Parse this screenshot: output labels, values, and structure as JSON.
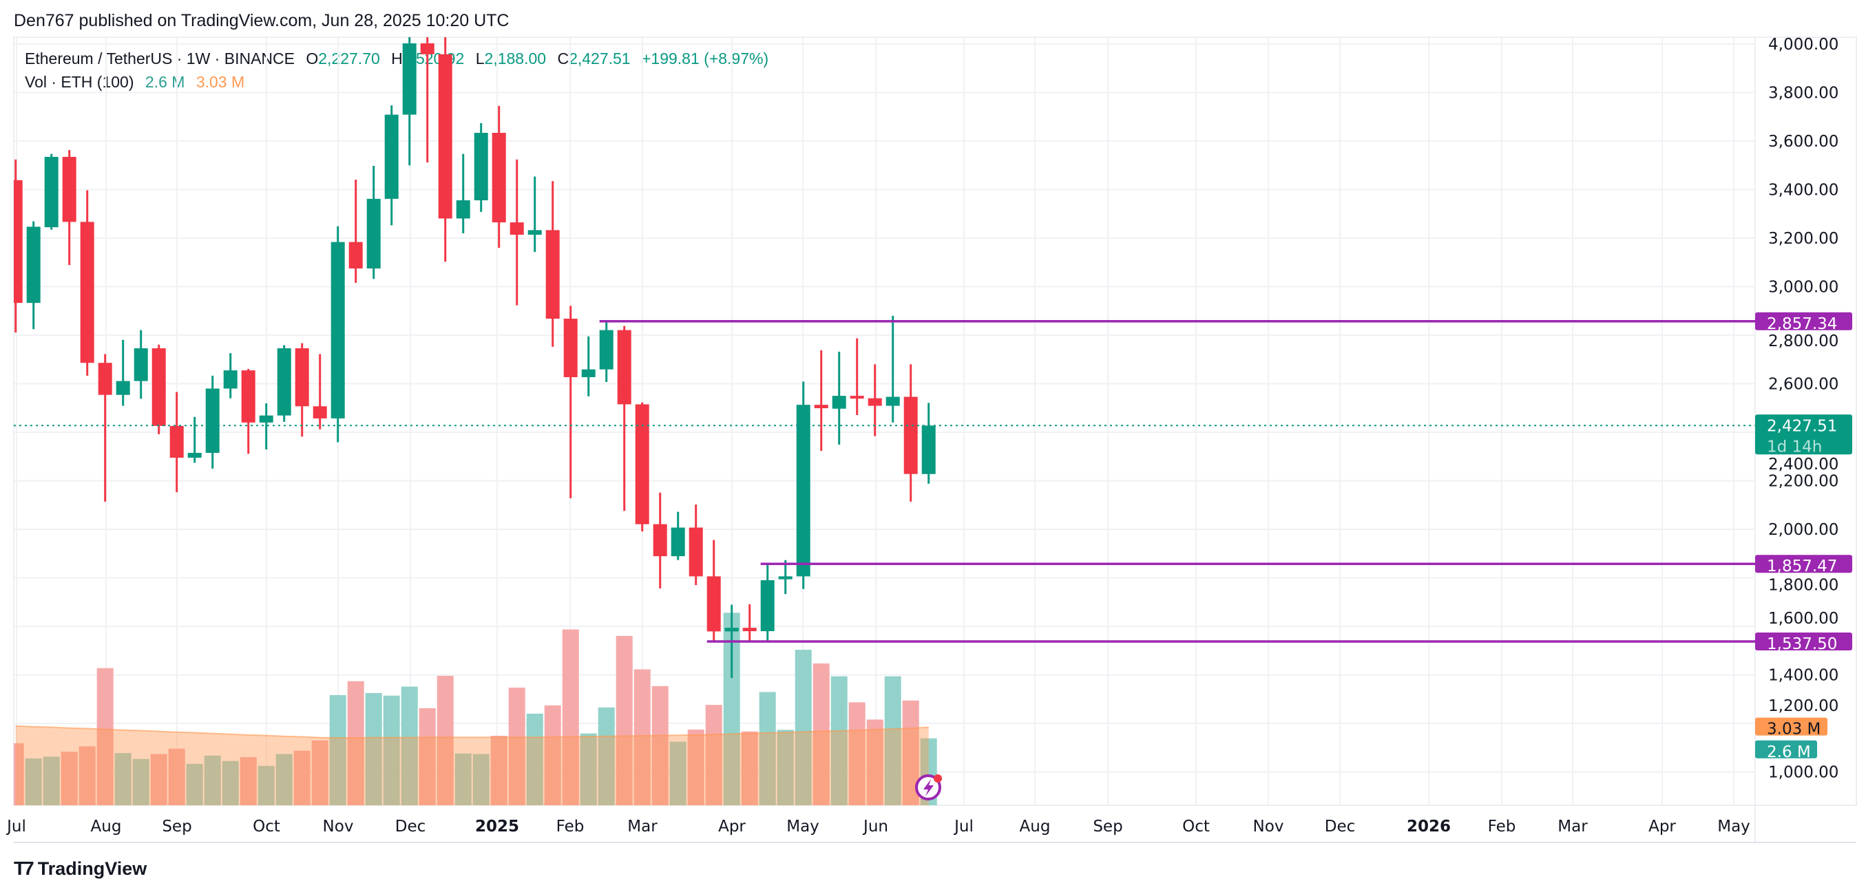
{
  "header": {
    "published": "Den767 published on TradingView.com, Jun 28, 2025 10:20 UTC"
  },
  "legend": {
    "symbol": "Ethereum / TetherUS · 1W · BINANCE",
    "o_label": "O",
    "open": "2,227.70",
    "h_label": "H",
    "high": "2,520.92",
    "l_label": "L",
    "low": "2,188.00",
    "c_label": "C",
    "close": "2,427.51",
    "change": "+199.81 (+8.97%)",
    "vol_label": "Vol · ETH (100)",
    "vol_value": "2.6 M",
    "vol_ma": "3.03 M"
  },
  "colors": {
    "up": "#089981",
    "down": "#f23645",
    "level": "#9c27b0",
    "vol_ma": "#ff9850",
    "vol_tag": "#26a69a"
  },
  "price_axis": {
    "ticks": [
      "4,000.00",
      "3,800.00",
      "3,600.00",
      "3,400.00",
      "3,200.00",
      "3,000.00",
      "2,800.00",
      "2,600.00",
      "2,400.00",
      "2,200.00",
      "2,000.00",
      "1,800.00",
      "1,600.00",
      "1,400.00",
      "1,200.00",
      "1,000.00"
    ],
    "current_price": "2,427.51",
    "countdown": "1d 14h",
    "vol_ma_tag": "3.03 M",
    "vol_tag": "2.6 M"
  },
  "footer": {
    "brand": "TradingView"
  },
  "chart_data": {
    "type": "candlestick",
    "title": "Ethereum / TetherUS · 1W · BINANCE",
    "interval": "1W",
    "ylim": [
      1000,
      4000
    ],
    "grid": true,
    "x_ticks": [
      "Jul",
      "Aug",
      "Sep",
      "Oct",
      "Nov",
      "Dec",
      "2025",
      "Feb",
      "Mar",
      "Apr",
      "May",
      "Jun",
      "Jul",
      "Aug",
      "Sep",
      "Oct",
      "Nov",
      "Dec",
      "2026",
      "Feb",
      "Mar",
      "Apr",
      "May"
    ],
    "ohlc": [
      [
        3439,
        3524,
        2811,
        2933
      ],
      [
        2933,
        3269,
        2825,
        3247
      ],
      [
        3245,
        3547,
        3235,
        3535
      ],
      [
        3535,
        3563,
        3089,
        3267
      ],
      [
        3267,
        3397,
        2633,
        2686
      ],
      [
        2686,
        2722,
        2114,
        2554
      ],
      [
        2554,
        2781,
        2509,
        2611
      ],
      [
        2611,
        2821,
        2538,
        2746
      ],
      [
        2746,
        2761,
        2392,
        2426
      ],
      [
        2426,
        2566,
        2153,
        2295
      ],
      [
        2295,
        2463,
        2274,
        2315
      ],
      [
        2315,
        2633,
        2250,
        2580
      ],
      [
        2580,
        2726,
        2540,
        2655
      ],
      [
        2655,
        2661,
        2311,
        2440
      ],
      [
        2440,
        2519,
        2329,
        2469
      ],
      [
        2469,
        2759,
        2443,
        2746
      ],
      [
        2746,
        2767,
        2382,
        2507
      ],
      [
        2507,
        2722,
        2412,
        2457
      ],
      [
        2457,
        3249,
        2359,
        3184
      ],
      [
        3184,
        3441,
        3016,
        3075
      ],
      [
        3075,
        3498,
        3032,
        3362
      ],
      [
        3362,
        3747,
        3253,
        3709
      ],
      [
        3709,
        4110,
        3500,
        4003
      ],
      [
        4003,
        4110,
        3512,
        3958
      ],
      [
        3958,
        4110,
        3103,
        3281
      ],
      [
        3281,
        3547,
        3220,
        3356
      ],
      [
        3356,
        3674,
        3308,
        3634
      ],
      [
        3634,
        3745,
        3160,
        3265
      ],
      [
        3265,
        3524,
        2923,
        3214
      ],
      [
        3214,
        3454,
        3143,
        3233
      ],
      [
        3233,
        3435,
        2752,
        2868
      ],
      [
        2868,
        2921,
        2128,
        2627
      ],
      [
        2627,
        2795,
        2548,
        2659
      ],
      [
        2659,
        2860,
        2607,
        2821
      ],
      [
        2821,
        2838,
        2076,
        2515
      ],
      [
        2515,
        2523,
        1991,
        2021
      ],
      [
        2021,
        2151,
        1756,
        1889
      ],
      [
        1889,
        2072,
        1873,
        2007
      ],
      [
        2007,
        2102,
        1770,
        1806
      ],
      [
        1806,
        1956,
        1537,
        1579
      ],
      [
        1579,
        1689,
        1387,
        1594
      ],
      [
        1594,
        1691,
        1541,
        1580
      ],
      [
        1580,
        1859,
        1537,
        1790
      ],
      [
        1794,
        1873,
        1733,
        1806
      ],
      [
        1806,
        2609,
        1754,
        2513
      ],
      [
        2513,
        2738,
        2323,
        2499
      ],
      [
        2497,
        2732,
        2349,
        2550
      ],
      [
        2550,
        2787,
        2471,
        2540
      ],
      [
        2540,
        2680,
        2384,
        2509
      ],
      [
        2509,
        2880,
        2440,
        2546
      ],
      [
        2546,
        2680,
        2114,
        2228
      ],
      [
        2227.7,
        2520.92,
        2188.0,
        2427.51
      ]
    ],
    "volume_millions": [
      2.41,
      1.82,
      1.89,
      2.08,
      2.29,
      5.33,
      2.03,
      1.8,
      1.99,
      2.2,
      1.61,
      1.93,
      1.72,
      1.87,
      1.53,
      1.99,
      2.12,
      2.52,
      4.28,
      4.82,
      4.36,
      4.26,
      4.61,
      3.77,
      5.03,
      2.01,
      1.99,
      2.7,
      4.57,
      3.56,
      3.88,
      6.83,
      2.79,
      3.8,
      6.58,
      5.28,
      4.63,
      2.47,
      2.94,
      3.9,
      7.48,
      2.87,
      4.4,
      2.93,
      6.04,
      5.51,
      5.01,
      4.0,
      3.33,
      5.01,
      4.07,
      2.6
    ],
    "volume_ma_millions": [
      3.08,
      3.05,
      3.03,
      3.0,
      2.98,
      2.95,
      2.92,
      2.9,
      2.87,
      2.84,
      2.82,
      2.79,
      2.76,
      2.73,
      2.71,
      2.68,
      2.66,
      2.63,
      2.62,
      2.62,
      2.63,
      2.63,
      2.63,
      2.64,
      2.64,
      2.64,
      2.64,
      2.64,
      2.64,
      2.64,
      2.65,
      2.66,
      2.67,
      2.68,
      2.69,
      2.7,
      2.71,
      2.72,
      2.73,
      2.75,
      2.77,
      2.79,
      2.81,
      2.83,
      2.85,
      2.87,
      2.89,
      2.91,
      2.94,
      2.96,
      2.99,
      3.03
    ],
    "levels": [
      {
        "label": "2,857.34",
        "price": 2857.34,
        "from_week": 34
      },
      {
        "label": "1,857.47",
        "price": 1857.47,
        "from_week": 43
      },
      {
        "label": "1,537.50",
        "price": 1537.5,
        "from_week": 40
      }
    ]
  }
}
